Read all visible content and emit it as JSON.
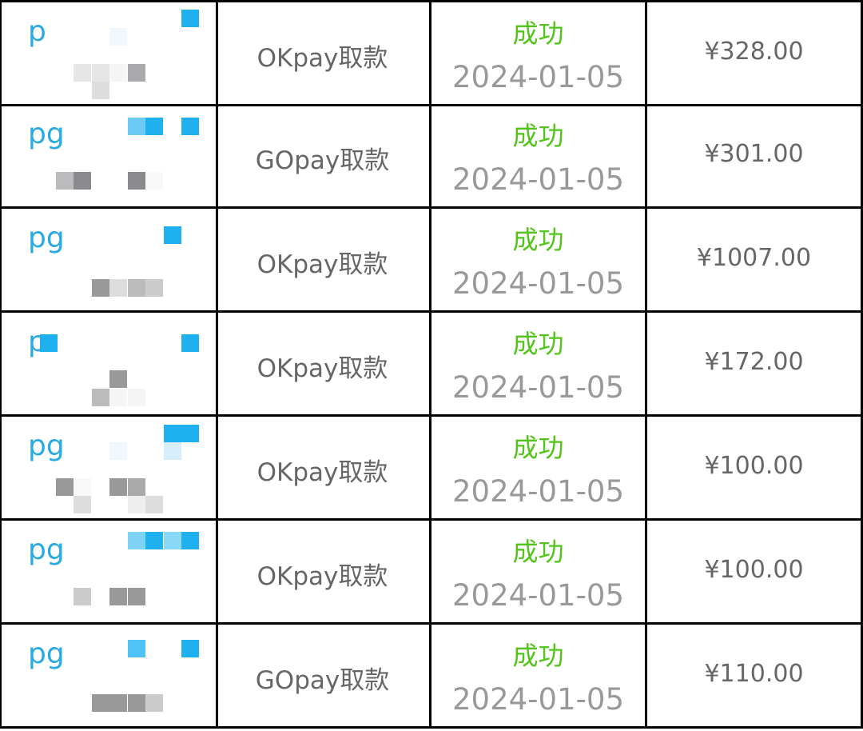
{
  "colors": {
    "status_success": "#52c41a",
    "name_blue": "#29abe2",
    "text_gray": "#666666",
    "date_gray": "#999999"
  },
  "rows": [
    {
      "name": "p",
      "type": "OKpay取款",
      "status": "成功",
      "date": "2024-01-05",
      "amount": "¥328.00"
    },
    {
      "name": "pg",
      "type": "GOpay取款",
      "status": "成功",
      "date": "2024-01-05",
      "amount": "¥301.00"
    },
    {
      "name": "pg",
      "type": "OKpay取款",
      "status": "成功",
      "date": "2024-01-05",
      "amount": "¥1007.00"
    },
    {
      "name": "p",
      "type": "OKpay取款",
      "status": "成功",
      "date": "2024-01-05",
      "amount": "¥172.00"
    },
    {
      "name": "pg",
      "type": "OKpay取款",
      "status": "成功",
      "date": "2024-01-05",
      "amount": "¥100.00"
    },
    {
      "name": "pg",
      "type": "OKpay取款",
      "status": "成功",
      "date": "2024-01-05",
      "amount": "¥100.00"
    },
    {
      "name": "pg",
      "type": "GOpay取款",
      "status": "成功",
      "date": "2024-01-05",
      "amount": "¥110.00"
    }
  ]
}
